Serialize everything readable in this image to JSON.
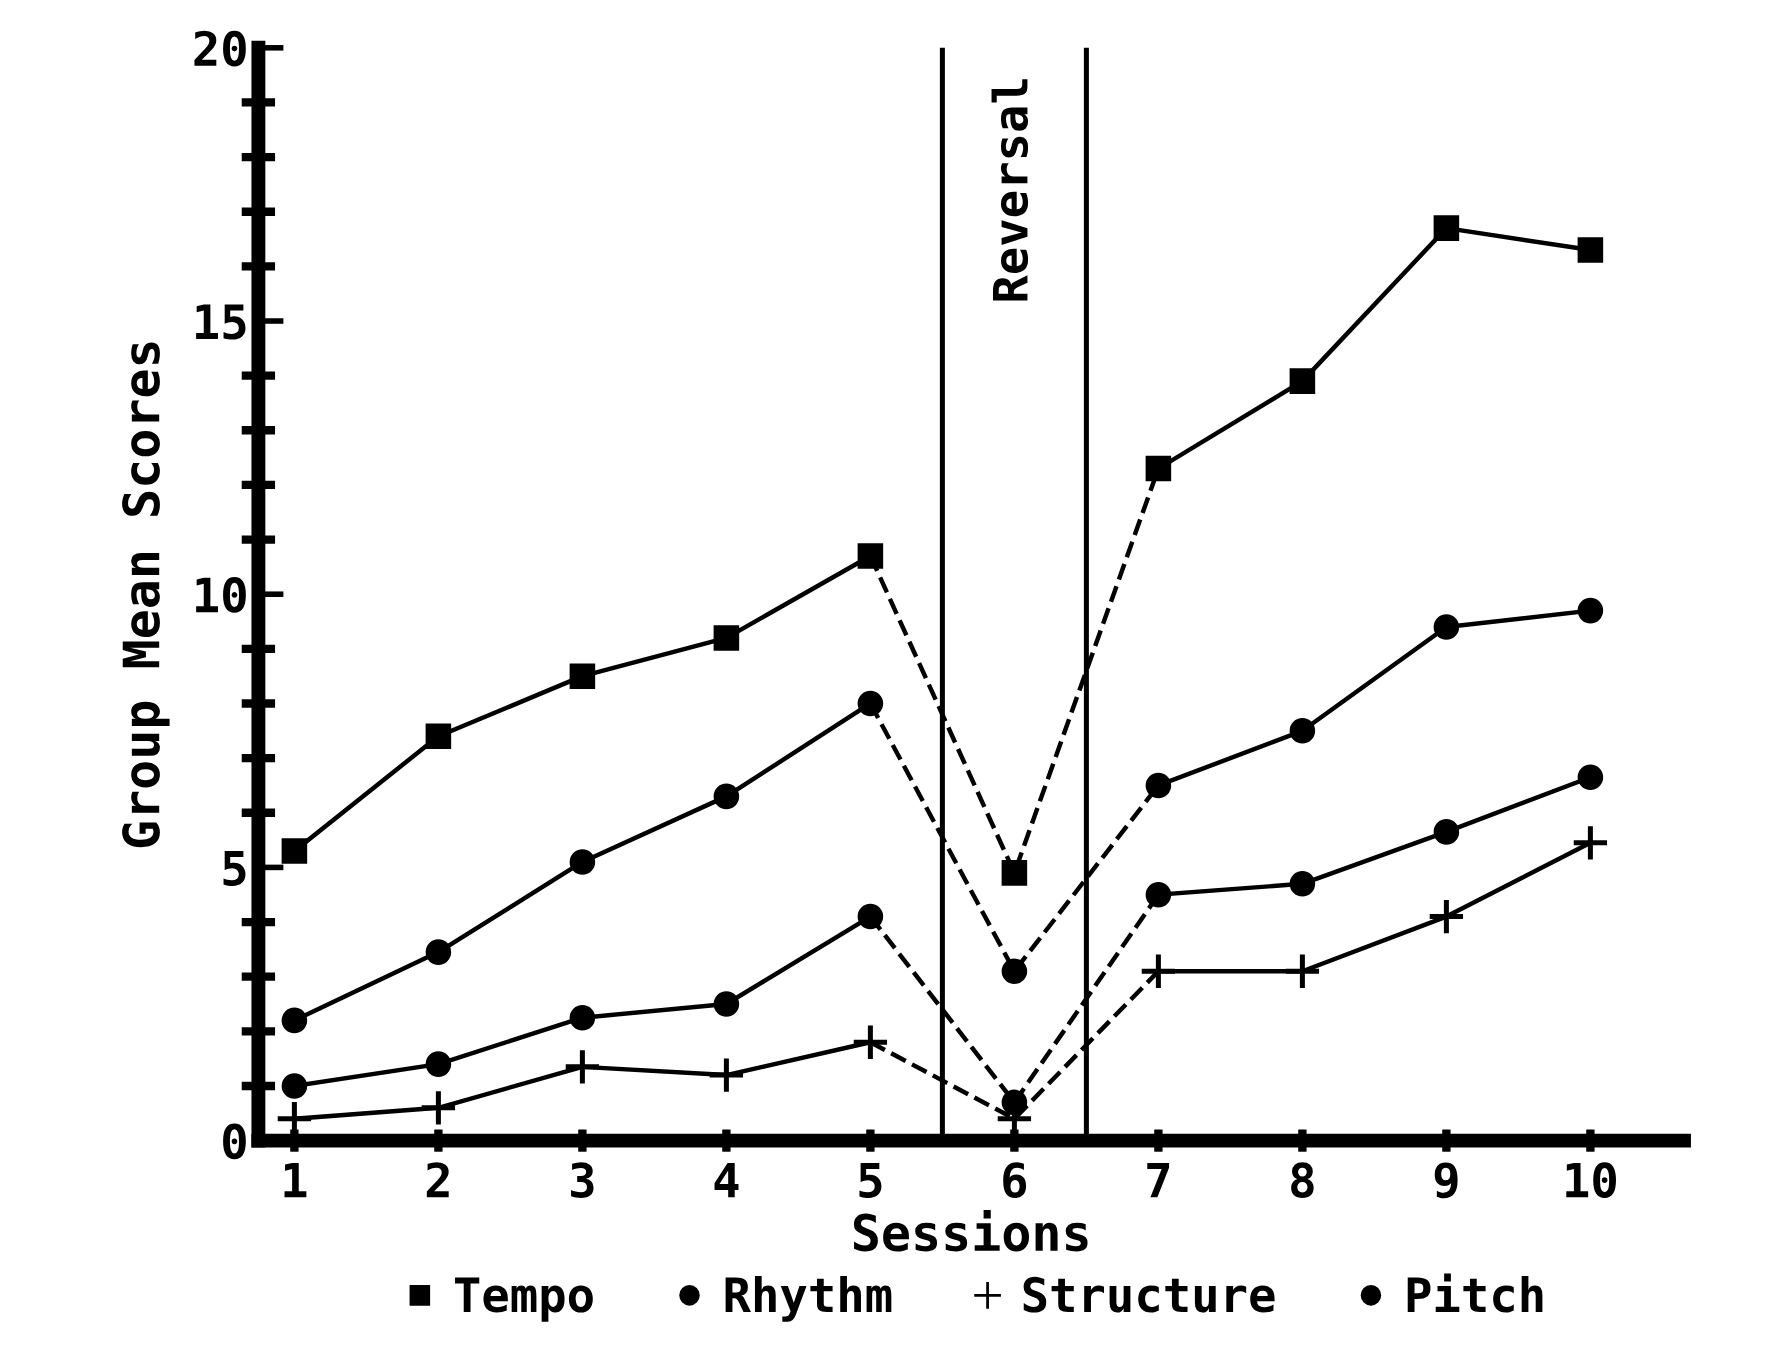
{
  "chart_data": {
    "type": "line",
    "xlabel": "Sessions",
    "ylabel": "Group Mean Scores",
    "categories": [
      "1",
      "2",
      "3",
      "4",
      "5",
      "6",
      "7",
      "8",
      "9",
      "10"
    ],
    "ylim": [
      0,
      20
    ],
    "yticks": [
      0,
      5,
      10,
      15,
      20
    ],
    "grid": false,
    "legend": "bottom",
    "series": [
      {
        "name": "Tempo",
        "color": "#000000",
        "marker": "square",
        "line_style": "solid",
        "values": [
          5.3,
          7.4,
          8.5,
          9.2,
          10.7,
          4.9,
          12.3,
          13.9,
          16.7,
          16.3
        ]
      },
      {
        "name": "Rhythm",
        "color": "#000000",
        "marker": "circle",
        "line_style": "solid",
        "values": [
          1.0,
          1.4,
          2.25,
          2.5,
          4.1,
          0.7,
          4.5,
          4.7,
          5.65,
          6.65
        ]
      },
      {
        "name": "Structure",
        "color": "#000000",
        "marker": "cross",
        "line_style": "solid",
        "values": [
          0.4,
          0.6,
          1.35,
          1.2,
          1.8,
          0.4,
          3.1,
          3.1,
          4.1,
          5.45
        ]
      },
      {
        "name": "Pitch",
        "color": "#000000",
        "marker": "circle",
        "line_style": "solid",
        "values": [
          2.2,
          3.45,
          5.1,
          6.3,
          8.0,
          3.1,
          6.5,
          7.5,
          9.4,
          9.7
        ]
      }
    ],
    "annotations": [
      "Reversal"
    ]
  }
}
